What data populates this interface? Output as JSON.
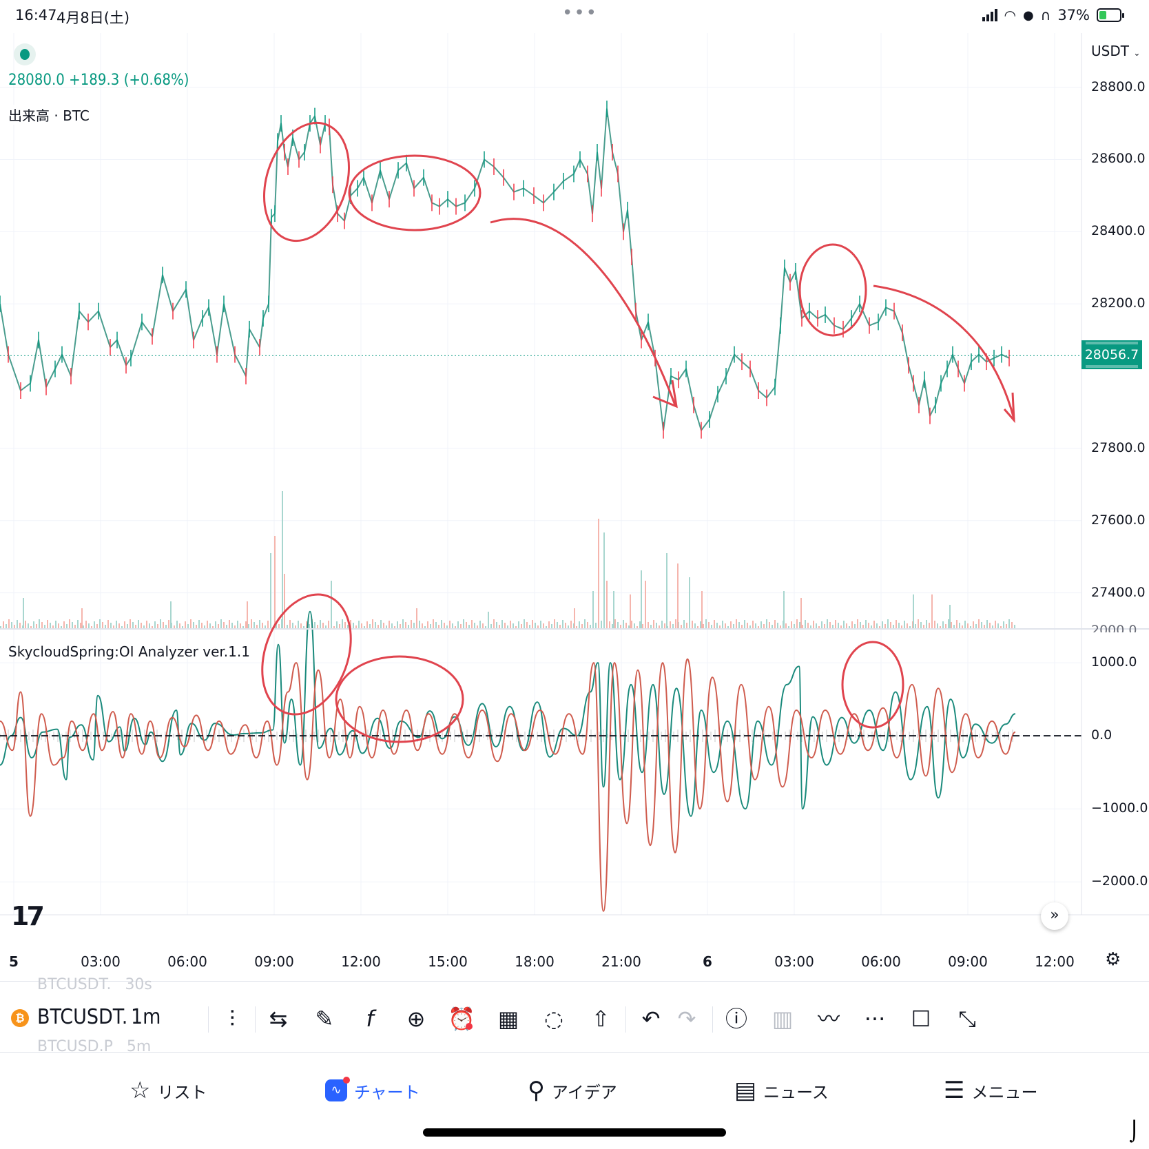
{
  "status_bar": {
    "time": "16:47",
    "date": "4月8日(土)",
    "dots": "•••",
    "battery_percent": "37%",
    "battery_level": 0.37
  },
  "chart": {
    "price_summary": "28080.0 +189.3 (+0.68%)",
    "volume_label": "出来高 · BTC",
    "indicator_label": "SkycloudSpring:OI Analyzer ver.1.1",
    "currency": "USDT",
    "last_price": "28056.7",
    "price_axis": [
      "28800.0",
      "28600.0",
      "28400.0",
      "28200.0",
      "27800.0",
      "27600.0",
      "27400.0"
    ],
    "indicator_axis": [
      "1000.0",
      "0.0",
      "−1000.0",
      "−2000.0"
    ],
    "indicator_axis_top": "2000.0",
    "time_axis": [
      "5",
      "03:00",
      "06:00",
      "09:00",
      "12:00",
      "15:00",
      "18:00",
      "21:00",
      "6",
      "03:00",
      "06:00",
      "09:00",
      "12:00"
    ],
    "colors": {
      "up": "#089981",
      "down": "#f23645",
      "oi_teal": "#1a8a7c",
      "oi_red": "#cf5c4e",
      "annotation": "#e0444e"
    }
  },
  "chart_data": {
    "type": "line",
    "price_ylim": [
      27300,
      28950
    ],
    "indicator_ylim": [
      -2450,
      2000
    ],
    "price_series": {
      "name": "BTCUSDT",
      "x": [
        0,
        12,
        30,
        44,
        56,
        67,
        80,
        90,
        103,
        115,
        128,
        143,
        160,
        170,
        183,
        190,
        206,
        221,
        236,
        251,
        270,
        281,
        294,
        303,
        315,
        325,
        341,
        357,
        362,
        377,
        382,
        390,
        394,
        399,
        403,
        408,
        413,
        418,
        425,
        434,
        442,
        450,
        457,
        465,
        472,
        478,
        483,
        490,
        500,
        509,
        519,
        528,
        540,
        552,
        565,
        578,
        590,
        601,
        615,
        627,
        638,
        650,
        662,
        675,
        689,
        703,
        717,
        731,
        746,
        760,
        775,
        789,
        804,
        818,
        833,
        842,
        853,
        860,
        867,
        873,
        881,
        889,
        897,
        905,
        911,
        917,
        923,
        931,
        941,
        951,
        963,
        974,
        985,
        996,
        1007,
        1018,
        1030,
        1042,
        1054,
        1066,
        1077,
        1089,
        1101,
        1113,
        1125,
        1133,
        1139,
        1147,
        1155,
        1164,
        1175,
        1187,
        1198,
        1211,
        1224,
        1236,
        1248,
        1262,
        1275,
        1286,
        1298,
        1310,
        1319,
        1326,
        1334,
        1342,
        1350,
        1358,
        1366,
        1375,
        1383,
        1391,
        1400,
        1410,
        1421,
        1432,
        1443,
        1454,
        1465
      ],
      "y": [
        28200,
        28060,
        27960,
        27980,
        28100,
        27970,
        28020,
        28060,
        28000,
        28180,
        28150,
        28180,
        28080,
        28100,
        28030,
        28050,
        28150,
        28110,
        28280,
        28180,
        28240,
        28100,
        28160,
        28190,
        28060,
        28200,
        28060,
        28000,
        28130,
        28080,
        28160,
        28200,
        28440,
        28450,
        28650,
        28700,
        28620,
        28580,
        28660,
        28600,
        28620,
        28700,
        28720,
        28640,
        28700,
        28690,
        28530,
        28450,
        28430,
        28500,
        28520,
        28550,
        28480,
        28570,
        28490,
        28570,
        28590,
        28520,
        28550,
        28480,
        28470,
        28490,
        28470,
        28480,
        28520,
        28600,
        28580,
        28550,
        28510,
        28520,
        28500,
        28480,
        28510,
        28540,
        28560,
        28600,
        28560,
        28450,
        28620,
        28520,
        28740,
        28620,
        28560,
        28400,
        28460,
        28330,
        28180,
        28100,
        28150,
        28050,
        27850,
        28000,
        27990,
        28020,
        27920,
        27850,
        27880,
        27950,
        28000,
        28060,
        28040,
        28020,
        27960,
        27940,
        27970,
        28140,
        28300,
        28260,
        28290,
        28160,
        28180,
        28160,
        28170,
        28140,
        28130,
        28160,
        28200,
        28140,
        28150,
        28190,
        28180,
        28120,
        28030,
        27980,
        27920,
        27990,
        27890,
        27920,
        27980,
        28020,
        28060,
        28020,
        27980,
        28040,
        28060,
        28040,
        28050,
        28060,
        28050
      ]
    },
    "volume_series": {
      "name": "出来高",
      "x": [
        33,
        118,
        247,
        358,
        392,
        398,
        409,
        412,
        480,
        604,
        708,
        833,
        860,
        868,
        876,
        880,
        890,
        914,
        930,
        936,
        967,
        983,
        1000,
        1018,
        1137,
        1162,
        1325,
        1352,
        1378
      ],
      "y": [
        45,
        30,
        40,
        40,
        110,
        135,
        200,
        80,
        70,
        30,
        25,
        30,
        55,
        160,
        140,
        70,
        55,
        50,
        85,
        70,
        110,
        95,
        75,
        55,
        55,
        45,
        50,
        50,
        35
      ]
    },
    "oi_series": [
      {
        "name": "OI teal",
        "x": [
          0,
          16,
          30,
          46,
          62,
          83,
          96,
          101,
          118,
          135,
          142,
          158,
          174,
          181,
          195,
          211,
          219,
          236,
          256,
          262,
          278,
          297,
          312,
          339,
          353,
          379,
          396,
          404,
          413,
          423,
          436,
          450,
          463,
          480,
          493,
          512,
          526,
          548,
          566,
          582,
          608,
          624,
          642,
          660,
          680,
          700,
          720,
          740,
          760,
          780,
          798,
          818,
          838,
          857,
          868,
          876,
          886,
          900,
          916,
          932,
          948,
          964,
          982,
          1003,
          1018,
          1036,
          1056,
          1082,
          1100,
          1120,
          1142,
          1160,
          1165,
          1180,
          1200,
          1222,
          1240,
          1262,
          1282,
          1300,
          1322,
          1346,
          1362,
          1380,
          1398,
          1416,
          1440,
          1460,
          1474
        ],
        "y": [
          -400,
          0,
          250,
          -300,
          50,
          90,
          -600,
          -20,
          150,
          -330,
          550,
          -80,
          120,
          -210,
          240,
          -120,
          50,
          -350,
          350,
          -260,
          170,
          -60,
          170,
          10,
          30,
          40,
          80,
          1250,
          -100,
          500,
          -400,
          1700,
          -170,
          100,
          -260,
          70,
          -240,
          240,
          -170,
          200,
          -20,
          340,
          -40,
          260,
          -130,
          440,
          -150,
          400,
          -200,
          460,
          -290,
          100,
          0,
          600,
          1000,
          -700,
          1000,
          -600,
          700,
          -500,
          700,
          -800,
          650,
          -1100,
          350,
          -500,
          200,
          -1000,
          200,
          -400,
          700,
          950,
          -1000,
          260,
          -400,
          250,
          -100,
          350,
          -200,
          600,
          -600,
          400,
          -850,
          500,
          -300,
          160,
          -100,
          160,
          300
        ]
      },
      {
        "name": "OI red",
        "x": [
          0,
          18,
          30,
          44,
          60,
          78,
          92,
          104,
          120,
          136,
          148,
          164,
          178,
          190,
          206,
          218,
          232,
          250,
          268,
          285,
          302,
          318,
          335,
          356,
          372,
          388,
          402,
          418,
          430,
          446,
          462,
          478,
          494,
          508,
          522,
          540,
          556,
          572,
          590,
          606,
          622,
          642,
          660,
          680,
          700,
          722,
          742,
          762,
          784,
          806,
          826,
          846,
          862,
          876,
          892,
          910,
          926,
          944,
          962,
          980,
          998,
          1016,
          1034,
          1056,
          1076,
          1096,
          1116,
          1136,
          1156,
          1178,
          1198,
          1220,
          1240,
          1260,
          1282,
          1302,
          1324,
          1344,
          1362,
          1382,
          1402,
          1420,
          1440,
          1460,
          1474
        ],
        "y": [
          200,
          -200,
          600,
          -1100,
          300,
          -400,
          -300,
          200,
          -200,
          300,
          -200,
          330,
          -300,
          300,
          -250,
          200,
          -300,
          250,
          -150,
          280,
          -200,
          200,
          -250,
          150,
          -300,
          200,
          -400,
          600,
          1000,
          -600,
          900,
          -300,
          500,
          -300,
          400,
          -300,
          350,
          -250,
          350,
          -200,
          300,
          -250,
          300,
          -300,
          350,
          -350,
          300,
          -200,
          350,
          -250,
          300,
          -250,
          1000,
          -2400,
          1000,
          -1200,
          900,
          -1500,
          1000,
          -1600,
          1050,
          -1000,
          800,
          -900,
          700,
          -600,
          400,
          -700,
          350,
          -300,
          350,
          -250,
          300,
          -200,
          380,
          -300,
          700,
          -550,
          650,
          -500,
          300,
          -300,
          200,
          -250,
          50
        ]
      }
    ],
    "xlabel": "",
    "ylabel": "",
    "grid": true,
    "legend": "none"
  },
  "toolbar": {
    "symbol": "BTCUSDT.",
    "timeframe": "1m",
    "ghost_top": "BTCUSDT.",
    "ghost_top_tf": "30s",
    "ghost_bottom": "BTCUSD.P",
    "ghost_bottom_tf": "5m",
    "icons": [
      "candlestick-icon",
      "replay-icon",
      "draw-icon",
      "indicator-icon",
      "add-icon",
      "alert-icon",
      "layout-icon",
      "idea-icon",
      "share-icon",
      "undo-icon",
      "redo-icon",
      "info-icon",
      "volume-icon",
      "trend-icon",
      "more-icon",
      "square-icon",
      "fullscreen-icon"
    ]
  },
  "nav": {
    "list": "リスト",
    "chart": "チャート",
    "ideas": "アイデア",
    "news": "ニュース",
    "menu": "メニュー"
  }
}
